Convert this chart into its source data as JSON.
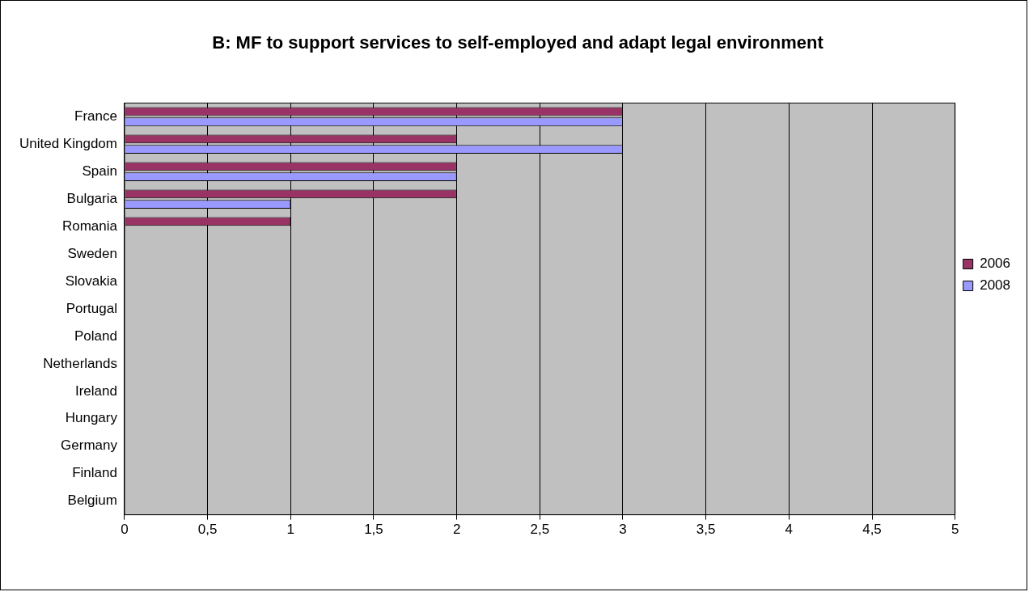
{
  "chart_data": {
    "type": "bar",
    "orientation": "horizontal",
    "title": "B: MF to support services to self-employed and adapt legal environment",
    "categories": [
      "France",
      "United Kingdom",
      "Spain",
      "Bulgaria",
      "Romania",
      "Sweden",
      "Slovakia",
      "Portugal",
      "Poland",
      "Netherlands",
      "Ireland",
      "Hungary",
      "Germany",
      "Finland",
      "Belgium"
    ],
    "series": [
      {
        "name": "2006",
        "color": "#993366",
        "values": [
          3,
          2,
          2,
          2,
          1,
          0,
          0,
          0,
          0,
          0,
          0,
          0,
          0,
          0,
          0
        ]
      },
      {
        "name": "2008",
        "color": "#9999ff",
        "values": [
          3,
          3,
          2,
          1,
          0,
          0,
          0,
          0,
          0,
          0,
          0,
          0,
          0,
          0,
          0
        ]
      }
    ],
    "xlim": [
      0,
      5
    ],
    "xticks": [
      0,
      {
        "value": 0.5,
        "label": "0,5"
      },
      1,
      {
        "value": 1.5,
        "label": "1,5"
      },
      2,
      {
        "value": 2.5,
        "label": "2,5"
      },
      3,
      {
        "value": 3.5,
        "label": "3,5"
      },
      4,
      {
        "value": 4.5,
        "label": "4,5"
      },
      5
    ],
    "grid": "x",
    "legend": "right"
  }
}
